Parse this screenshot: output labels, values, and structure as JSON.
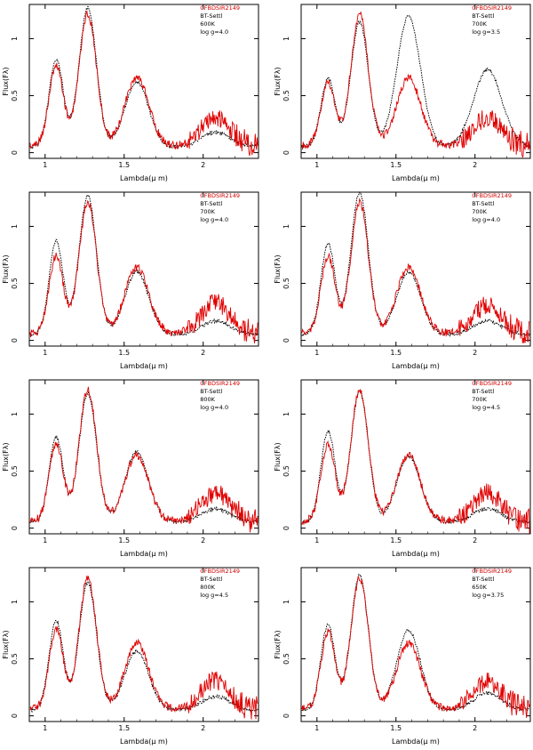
{
  "chart_data": [
    {
      "type": "line",
      "xlabel": "Lambda(μ m)",
      "ylabel": "Flux(Fλ)",
      "xlim": [
        0.9,
        2.35
      ],
      "ylim": [
        -0.05,
        1.3
      ],
      "xticks": [
        "1",
        "1.5",
        "2"
      ],
      "yticks": [
        "0",
        "0.5",
        "1"
      ],
      "legend": {
        "object": "CFBDSIR2149",
        "model": "BT-Settl",
        "teff": "600K",
        "logg": "log g=4.0"
      },
      "series": [
        {
          "name": "CFBDSIR2149",
          "style": "red-solid",
          "peaks": [
            [
              1.07,
              0.7
            ],
            [
              1.27,
              1.15
            ],
            [
              1.58,
              0.6
            ],
            [
              2.08,
              0.25
            ]
          ]
        },
        {
          "name": "BT-Settl model",
          "style": "black-dotted",
          "peaks": [
            [
              1.07,
              0.77
            ],
            [
              1.27,
              1.22
            ],
            [
              1.58,
              0.57
            ],
            [
              2.08,
              0.13
            ]
          ]
        }
      ]
    },
    {
      "type": "line",
      "xlabel": "Lambda(μ m)",
      "ylabel": "Flux(Fλ)",
      "xlim": [
        0.9,
        2.35
      ],
      "ylim": [
        -0.05,
        1.3
      ],
      "xticks": [
        "1",
        "1.5",
        "2"
      ],
      "yticks": [
        "0",
        "0.5",
        "1"
      ],
      "legend": {
        "object": "CFBDSIR2149",
        "model": "BT-Settl",
        "teff": "700K",
        "logg": "log g=3.5"
      },
      "series": [
        {
          "name": "CFBDSIR2149",
          "style": "red-solid",
          "peaks": [
            [
              1.07,
              0.55
            ],
            [
              1.27,
              1.15
            ],
            [
              1.58,
              0.6
            ],
            [
              2.08,
              0.25
            ]
          ]
        },
        {
          "name": "BT-Settl model",
          "style": "black-dotted",
          "peaks": [
            [
              1.07,
              0.6
            ],
            [
              1.27,
              1.1
            ],
            [
              1.58,
              1.15
            ],
            [
              2.08,
              0.68
            ]
          ]
        }
      ]
    },
    {
      "type": "line",
      "xlabel": "Lambda(μ m)",
      "ylabel": "Flux(Fλ)",
      "xlim": [
        0.9,
        2.35
      ],
      "ylim": [
        -0.05,
        1.3
      ],
      "xticks": [
        "1",
        "1.5",
        "2"
      ],
      "yticks": [
        "0",
        "0.5",
        "1"
      ],
      "legend": {
        "object": "CFBDSIR2149",
        "model": "BT-Settl",
        "teff": "700K",
        "logg": "log g=4.0"
      },
      "series": [
        {
          "name": "CFBDSIR2149",
          "style": "red-solid",
          "peaks": [
            [
              1.07,
              0.68
            ],
            [
              1.27,
              1.15
            ],
            [
              1.58,
              0.58
            ],
            [
              2.08,
              0.27
            ]
          ]
        },
        {
          "name": "BT-Settl model",
          "style": "black-dotted",
          "peaks": [
            [
              1.07,
              0.82
            ],
            [
              1.27,
              1.22
            ],
            [
              1.58,
              0.55
            ],
            [
              2.08,
              0.12
            ]
          ]
        }
      ]
    },
    {
      "type": "line",
      "xlabel": "Lambda(μ m)",
      "ylabel": "Flux(Fλ)",
      "xlim": [
        0.9,
        2.35
      ],
      "ylim": [
        -0.05,
        1.3
      ],
      "xticks": [
        "1",
        "1.5",
        "2"
      ],
      "yticks": [
        "0",
        "0.5",
        "1"
      ],
      "legend": {
        "object": "CFBDSIR2149",
        "model": "BT-Settl",
        "teff": "700K",
        "logg": "log g=4.0"
      },
      "series": [
        {
          "name": "CFBDSIR2149",
          "style": "red-solid",
          "peaks": [
            [
              1.07,
              0.68
            ],
            [
              1.27,
              1.15
            ],
            [
              1.58,
              0.58
            ],
            [
              2.08,
              0.25
            ]
          ]
        },
        {
          "name": "BT-Settl model",
          "style": "black-dotted",
          "peaks": [
            [
              1.07,
              0.8
            ],
            [
              1.27,
              1.25
            ],
            [
              1.58,
              0.55
            ],
            [
              2.08,
              0.12
            ]
          ]
        }
      ]
    },
    {
      "type": "line",
      "xlabel": "Lambda(μ m)",
      "ylabel": "Flux(Fλ)",
      "xlim": [
        0.9,
        2.35
      ],
      "ylim": [
        -0.05,
        1.3
      ],
      "xticks": [
        "1",
        "1.5",
        "2"
      ],
      "yticks": [
        "0",
        "0.5",
        "1"
      ],
      "legend": {
        "object": "CFBDSIR2149",
        "model": "BT-Settl",
        "teff": "800K",
        "logg": "log g=4.0"
      },
      "series": [
        {
          "name": "CFBDSIR2149",
          "style": "red-solid",
          "peaks": [
            [
              1.07,
              0.68
            ],
            [
              1.27,
              1.15
            ],
            [
              1.58,
              0.58
            ],
            [
              2.08,
              0.25
            ]
          ]
        },
        {
          "name": "BT-Settl model",
          "style": "black-dotted",
          "peaks": [
            [
              1.07,
              0.75
            ],
            [
              1.27,
              1.13
            ],
            [
              1.58,
              0.62
            ],
            [
              2.08,
              0.12
            ]
          ]
        }
      ]
    },
    {
      "type": "line",
      "xlabel": "Lambda(μ m)",
      "ylabel": "Flux(Fλ)",
      "xlim": [
        0.9,
        2.35
      ],
      "ylim": [
        -0.05,
        1.3
      ],
      "xticks": [
        "1",
        "1.5",
        "2"
      ],
      "yticks": [
        "0",
        "0.5",
        "1"
      ],
      "legend": {
        "object": "CFBDSIR2149",
        "model": "BT-Settl",
        "teff": "700K",
        "logg": "log g=4.5"
      },
      "series": [
        {
          "name": "CFBDSIR2149",
          "style": "red-solid",
          "peaks": [
            [
              1.07,
              0.68
            ],
            [
              1.27,
              1.15
            ],
            [
              1.58,
              0.58
            ],
            [
              2.08,
              0.25
            ]
          ]
        },
        {
          "name": "BT-Settl model",
          "style": "black-dotted",
          "peaks": [
            [
              1.07,
              0.8
            ],
            [
              1.27,
              1.15
            ],
            [
              1.58,
              0.58
            ],
            [
              2.08,
              0.12
            ]
          ]
        }
      ]
    },
    {
      "type": "line",
      "xlabel": "Lambda(μ m)",
      "ylabel": "Flux(Fλ)",
      "xlim": [
        0.9,
        2.35
      ],
      "ylim": [
        -0.05,
        1.3
      ],
      "xticks": [
        "1",
        "1.5",
        "2"
      ],
      "yticks": [
        "0",
        "0.5",
        "1"
      ],
      "legend": {
        "object": "CFBDSIR2149",
        "model": "BT-Settl",
        "teff": "800K",
        "logg": "log g=4.5"
      },
      "series": [
        {
          "name": "CFBDSIR2149",
          "style": "red-solid",
          "peaks": [
            [
              1.07,
              0.7
            ],
            [
              1.27,
              1.15
            ],
            [
              1.58,
              0.58
            ],
            [
              2.08,
              0.25
            ]
          ]
        },
        {
          "name": "BT-Settl model",
          "style": "black-dotted",
          "peaks": [
            [
              1.07,
              0.78
            ],
            [
              1.27,
              1.12
            ],
            [
              1.58,
              0.52
            ],
            [
              2.08,
              0.12
            ]
          ]
        }
      ]
    },
    {
      "type": "line",
      "xlabel": "Lambda(μ m)",
      "ylabel": "Flux(Fλ)",
      "xlim": [
        0.9,
        2.35
      ],
      "ylim": [
        -0.05,
        1.3
      ],
      "xticks": [
        "1",
        "1.5",
        "2"
      ],
      "yticks": [
        "0",
        "0.5",
        "1"
      ],
      "legend": {
        "object": "CFBDSIR2149",
        "model": "BT-Settl",
        "teff": "650K",
        "logg": "log g=3.75"
      },
      "series": [
        {
          "name": "CFBDSIR2149",
          "style": "red-solid",
          "peaks": [
            [
              1.07,
              0.68
            ],
            [
              1.27,
              1.15
            ],
            [
              1.58,
              0.58
            ],
            [
              2.08,
              0.25
            ]
          ]
        },
        {
          "name": "BT-Settl model",
          "style": "black-dotted",
          "peaks": [
            [
              1.07,
              0.75
            ],
            [
              1.27,
              1.18
            ],
            [
              1.58,
              0.7
            ],
            [
              2.08,
              0.15
            ]
          ]
        }
      ]
    }
  ]
}
